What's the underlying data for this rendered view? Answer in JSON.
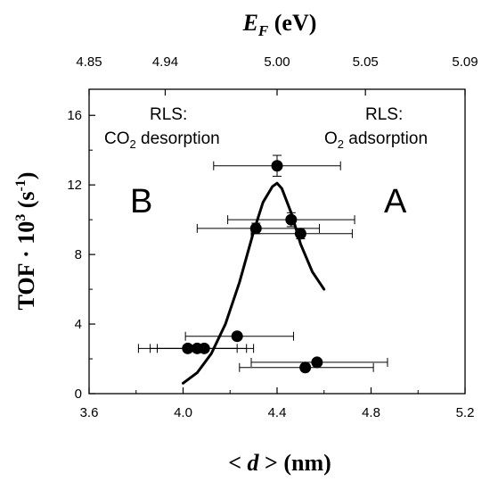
{
  "chart_data": {
    "type": "scatter",
    "xlabel_bottom_prefix": "< ",
    "xlabel_bottom_var": "d",
    "xlabel_bottom_suffix": " > (nm)",
    "xlabel_top_var": "E",
    "xlabel_top_sub": "F",
    "xlabel_top_unit": " (eV)",
    "ylabel_main": "TOF · 10",
    "ylabel_sup": "3",
    "ylabel_unit_open": " (s",
    "ylabel_unit_sup": "-1",
    "ylabel_unit_close": ")",
    "xlim": [
      3.6,
      5.2
    ],
    "ylim": [
      0,
      17.5
    ],
    "x_ticks": [
      {
        "value": 3.6,
        "label": "3.6"
      },
      {
        "value": 4.0,
        "label": "4.0"
      },
      {
        "value": 4.4,
        "label": "4.4"
      },
      {
        "value": 4.8,
        "label": "4.8"
      },
      {
        "value": 5.2,
        "label": "5.2"
      }
    ],
    "x_minor_ticks": [
      3.8,
      4.2,
      4.6,
      5.0
    ],
    "y_ticks": [
      {
        "value": 0,
        "label": "0"
      },
      {
        "value": 4,
        "label": "4"
      },
      {
        "value": 8,
        "label": "8"
      },
      {
        "value": 12,
        "label": "12"
      },
      {
        "value": 16,
        "label": "16"
      }
    ],
    "y_minor_ticks": [
      2,
      6,
      10,
      14
    ],
    "top_ticks": [
      {
        "pos": 3.6,
        "label": "4.85"
      },
      {
        "pos": 3.924,
        "label": "4.94"
      },
      {
        "pos": 4.4,
        "label": "5.00"
      },
      {
        "pos": 4.776,
        "label": "5.05"
      },
      {
        "pos": 5.2,
        "label": "5.09"
      }
    ],
    "points": [
      {
        "x": 4.4,
        "y": 13.1,
        "xerr_lo": 0.27,
        "xerr_hi": 0.27,
        "yerr": 0.6
      },
      {
        "x": 4.46,
        "y": 10.0,
        "xerr_lo": 0.27,
        "xerr_hi": 0.27,
        "yerr": 0.4
      },
      {
        "x": 4.31,
        "y": 9.5,
        "xerr_lo": 0.25,
        "xerr_hi": 0.27,
        "yerr": 0.3
      },
      {
        "x": 4.5,
        "y": 9.2,
        "xerr_lo": 0.21,
        "xerr_hi": 0.22,
        "yerr": 0.3
      },
      {
        "x": 4.23,
        "y": 3.3,
        "xerr_lo": 0.22,
        "xerr_hi": 0.24,
        "yerr": 0
      },
      {
        "x": 4.02,
        "y": 2.6,
        "xerr_lo": 0.21,
        "xerr_hi": 0.21,
        "yerr": 0
      },
      {
        "x": 4.06,
        "y": 2.6,
        "xerr_lo": 0.2,
        "xerr_hi": 0.21,
        "yerr": 0
      },
      {
        "x": 4.09,
        "y": 2.6,
        "xerr_lo": 0.2,
        "xerr_hi": 0.21,
        "yerr": 0
      },
      {
        "x": 4.57,
        "y": 1.8,
        "xerr_lo": 0.28,
        "xerr_hi": 0.3,
        "yerr": 0
      },
      {
        "x": 4.52,
        "y": 1.5,
        "xerr_lo": 0.28,
        "xerr_hi": 0.29,
        "yerr": 0
      }
    ],
    "fit_curve": {
      "x": [
        4.0,
        4.06,
        4.12,
        4.18,
        4.24,
        4.3,
        4.34,
        4.38,
        4.4,
        4.42,
        4.46,
        4.5,
        4.55,
        4.6
      ],
      "y": [
        0.6,
        1.2,
        2.3,
        4.0,
        6.4,
        9.3,
        11.0,
        11.9,
        12.1,
        11.8,
        10.4,
        8.6,
        7.0,
        6.0
      ]
    },
    "annotations": {
      "rls_left_title": "RLS:",
      "rls_left_pre": "CO",
      "rls_left_sub": "2",
      "rls_left_post": " desorption",
      "rls_right_title": "RLS:",
      "rls_right_pre": "O",
      "rls_right_sub": "2",
      "rls_right_post": " adsorption",
      "region_left": "B",
      "region_right": "A"
    }
  }
}
